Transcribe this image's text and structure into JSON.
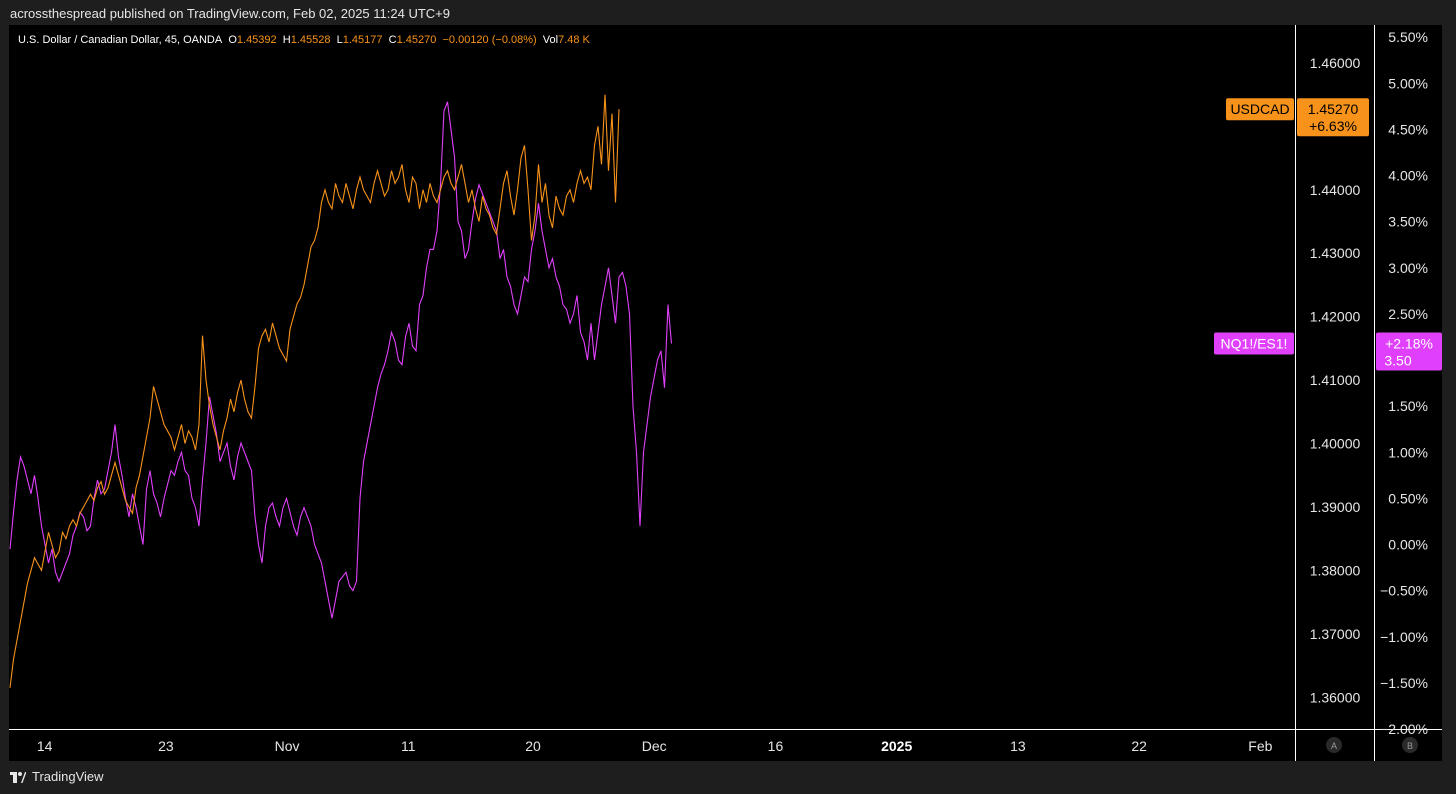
{
  "header": {
    "publisher_line": "acrossthespread published on TradingView.com, Feb 02, 2025 11:24 UTC+9"
  },
  "legend": {
    "symbol": "U.S. Dollar / Canadian Dollar, 45, OANDA",
    "o_label": "O",
    "o_value": "1.45392",
    "h_label": "H",
    "h_value": "1.45528",
    "l_label": "L",
    "l_value": "1.45177",
    "c_label": "C",
    "c_value": "1.45270",
    "change": "−0.00120 (−0.08%)",
    "vol_label": "Vol",
    "vol_value": "7.48 K"
  },
  "footer": {
    "brand": "TradingView"
  },
  "colors": {
    "usdcad": "#f7931a",
    "ratio": "#e040fb",
    "background": "#000000",
    "grid": "#ffffff"
  },
  "chart_data": {
    "type": "line",
    "x_ticks": [
      "14",
      "23",
      "Nov",
      "11",
      "20",
      "Dec",
      "16",
      "2025",
      "13",
      "22",
      "Feb"
    ],
    "x_tick_index": [
      10,
      45,
      80,
      115,
      151,
      186,
      221,
      256,
      291,
      326,
      361
    ],
    "x_tick_bold": [
      "2025"
    ],
    "y_left": {
      "label": "",
      "range": [
        1.355,
        1.4655
      ],
      "ticks": [
        "1.46000",
        "1.45000",
        "1.44000",
        "1.43000",
        "1.42000",
        "1.41000",
        "1.40000",
        "1.39000",
        "1.38000",
        "1.37000",
        "1.36000"
      ]
    },
    "y_right": {
      "label": "",
      "range": [
        -2.0,
        5.6
      ],
      "ticks": [
        "5.50%",
        "5.00%",
        "4.50%",
        "4.00%",
        "3.50%",
        "3.00%",
        "2.50%",
        "2.00%",
        "1.50%",
        "1.00%",
        "0.50%",
        "0.00%",
        "−0.50%",
        "−1.00%",
        "−1.50%",
        "−2.00%"
      ]
    },
    "series": [
      {
        "name": "USDCAD",
        "axis": "left",
        "values": [
          1.3615,
          1.366,
          1.369,
          1.372,
          1.375,
          1.378,
          1.38,
          1.382,
          1.381,
          1.38,
          1.383,
          1.386,
          1.384,
          1.382,
          1.383,
          1.386,
          1.385,
          1.387,
          1.388,
          1.387,
          1.389,
          1.39,
          1.391,
          1.392,
          1.391,
          1.393,
          1.394,
          1.392,
          1.393,
          1.395,
          1.397,
          1.395,
          1.393,
          1.391,
          1.39,
          1.389,
          1.393,
          1.395,
          1.398,
          1.401,
          1.404,
          1.409,
          1.407,
          1.405,
          1.403,
          1.402,
          1.401,
          1.399,
          1.401,
          1.403,
          1.4,
          1.402,
          1.401,
          1.399,
          1.403,
          1.417,
          1.41,
          1.406,
          1.403,
          1.401,
          1.399,
          1.402,
          1.404,
          1.407,
          1.405,
          1.408,
          1.41,
          1.407,
          1.405,
          1.404,
          1.409,
          1.415,
          1.417,
          1.418,
          1.416,
          1.419,
          1.417,
          1.415,
          1.414,
          1.413,
          1.418,
          1.42,
          1.422,
          1.423,
          1.425,
          1.428,
          1.431,
          1.432,
          1.434,
          1.438,
          1.44,
          1.438,
          1.437,
          1.441,
          1.439,
          1.438,
          1.441,
          1.439,
          1.437,
          1.44,
          1.442,
          1.44,
          1.439,
          1.438,
          1.441,
          1.443,
          1.441,
          1.439,
          1.44,
          1.443,
          1.441,
          1.442,
          1.444,
          1.44,
          1.438,
          1.442,
          1.441,
          1.437,
          1.44,
          1.438,
          1.441,
          1.439,
          1.438,
          1.44,
          1.442,
          1.443,
          1.441,
          1.44,
          1.442,
          1.444,
          1.441,
          1.438,
          1.44,
          1.437,
          1.435,
          1.439,
          1.437,
          1.436,
          1.434,
          1.433,
          1.437,
          1.441,
          1.443,
          1.439,
          1.436,
          1.44,
          1.445,
          1.447,
          1.44,
          1.432,
          1.436,
          1.444,
          1.438,
          1.441,
          1.436,
          1.434,
          1.439,
          1.437,
          1.436,
          1.439,
          1.44,
          1.438,
          1.441,
          1.443,
          1.441,
          1.442,
          1.44,
          1.447,
          1.45,
          1.444,
          1.455,
          1.443,
          1.452,
          1.438,
          1.4527
        ]
      },
      {
        "name": "NQ1!/ES1!",
        "axis": "right",
        "values": [
          -0.05,
          0.35,
          0.7,
          0.95,
          0.85,
          0.7,
          0.55,
          0.75,
          0.5,
          0.2,
          0.0,
          -0.2,
          -0.05,
          -0.3,
          -0.4,
          -0.3,
          -0.2,
          -0.1,
          0.1,
          0.2,
          0.35,
          0.3,
          0.15,
          0.2,
          0.5,
          0.7,
          0.55,
          0.6,
          0.8,
          1.0,
          1.3,
          0.95,
          0.75,
          0.5,
          0.3,
          0.55,
          0.4,
          0.2,
          0.0,
          0.6,
          0.8,
          0.55,
          0.45,
          0.3,
          0.5,
          0.65,
          0.8,
          0.75,
          0.9,
          1.0,
          0.8,
          0.75,
          0.5,
          0.4,
          0.2,
          0.7,
          1.1,
          1.6,
          1.4,
          1.2,
          0.9,
          1.0,
          1.1,
          0.85,
          0.7,
          0.95,
          1.1,
          1.0,
          0.9,
          0.8,
          0.3,
          0.0,
          -0.2,
          0.2,
          0.4,
          0.45,
          0.3,
          0.2,
          0.4,
          0.5,
          0.35,
          0.2,
          0.1,
          0.3,
          0.4,
          0.3,
          0.2,
          0.0,
          -0.1,
          -0.2,
          -0.4,
          -0.6,
          -0.8,
          -0.6,
          -0.4,
          -0.35,
          -0.3,
          -0.45,
          -0.5,
          -0.4,
          0.5,
          0.9,
          1.1,
          1.3,
          1.5,
          1.7,
          1.85,
          1.95,
          2.1,
          2.3,
          2.2,
          2.0,
          1.95,
          2.25,
          2.4,
          2.15,
          2.1,
          2.6,
          2.7,
          3.0,
          3.2,
          3.2,
          3.4,
          3.9,
          4.7,
          4.8,
          4.5,
          4.2,
          3.5,
          3.4,
          3.1,
          3.2,
          3.5,
          3.75,
          3.9,
          3.8,
          3.7,
          3.6,
          3.5,
          3.4,
          3.1,
          3.2,
          2.9,
          2.8,
          2.6,
          2.5,
          2.7,
          2.9,
          2.85,
          3.2,
          3.4,
          3.7,
          3.4,
          3.2,
          3.0,
          3.1,
          2.9,
          2.8,
          2.6,
          2.55,
          2.4,
          2.5,
          2.7,
          2.3,
          2.2,
          2.0,
          2.4,
          2.0,
          2.3,
          2.6,
          2.8,
          3.0,
          2.7,
          2.4,
          2.9,
          2.95,
          2.8,
          2.5,
          1.5,
          1.0,
          0.2,
          1.0,
          1.3,
          1.6,
          1.8,
          2.0,
          2.1,
          1.7,
          2.6,
          2.18
        ]
      }
    ],
    "labels": {
      "usdcad_tag": "USDCAD",
      "usdcad_price": "1.45270",
      "usdcad_change": "+6.63%",
      "ratio_tag": "NQ1!/ES1!",
      "ratio_change": "+2.18%",
      "ratio_value": "3.50"
    },
    "scale_badges": [
      "A",
      "B"
    ],
    "grid": false,
    "legend_position": "top-left"
  }
}
